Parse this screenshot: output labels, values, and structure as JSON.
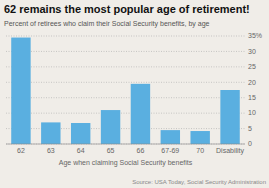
{
  "chart_data": {
    "type": "bar",
    "title": "62 remains the most popular age of retirement!",
    "subtitle": "Percent of retirees who claim their Social Security benefits, by age",
    "xlabel": "Age when claiming Social Security benefits",
    "source": "Source: USA Today, Social Security Administration",
    "categories": [
      "62",
      "63",
      "64",
      "65",
      "66",
      "67-69",
      "70",
      "Disability"
    ],
    "values": [
      34.5,
      7.0,
      6.8,
      11.0,
      19.5,
      4.5,
      4.2,
      17.5
    ],
    "color": "#5aafe0",
    "ylim": [
      0,
      35
    ],
    "yticks": [
      0,
      5,
      10,
      15,
      20,
      25,
      30,
      {
        "value": 35,
        "label": "35%"
      }
    ],
    "grid": true
  }
}
